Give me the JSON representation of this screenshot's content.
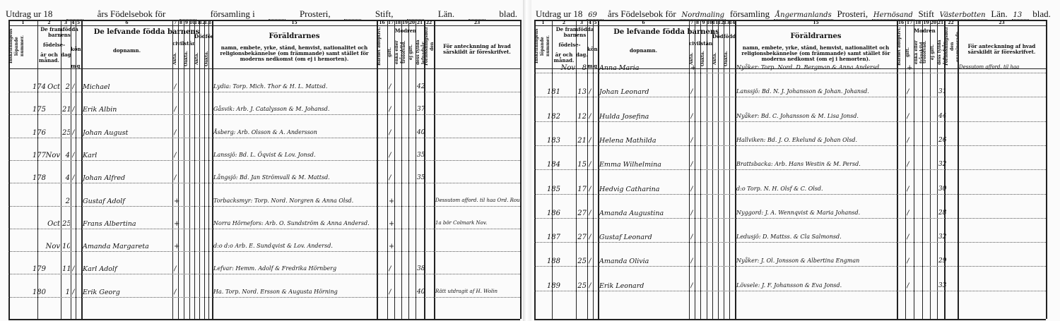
{
  "left_page": {
    "title": {
      "prefix": "Utdrag ur 18",
      "year": "",
      "suffix1": "års Födelsebok för",
      "parish_label": "församling i",
      "parish": "",
      "deanery_label": "Prosteri,",
      "deanery": "",
      "diocese_label": "Stift,",
      "diocese": "",
      "county_label": "Län.",
      "county": "",
      "sheet_label": "blad."
    },
    "rows": [
      {
        "num": "174",
        "month": "Oct",
        "day": "2",
        "sex": "/",
        "name": "Michael",
        "civil": "/",
        "parents": "Lydia: Torp. Mich. Thor & H. L. Mattsd.",
        "mother_mark": "/",
        "age": "42",
        "note": ""
      },
      {
        "num": "175",
        "month": "",
        "day": "21",
        "sex": "/",
        "name": "Erik Albin",
        "civil": "/",
        "parents": "Gåsvik: Arb. J. Catalysson & M. Johansd.",
        "mother_mark": "/",
        "age": "37",
        "note": ""
      },
      {
        "num": "176",
        "month": "",
        "day": "25",
        "sex": "/",
        "name": "Johan August",
        "civil": "/",
        "parents": "Åsberg: Arb. Olsson & A. Andersson",
        "mother_mark": "/",
        "age": "40",
        "note": ""
      },
      {
        "num": "177",
        "month": "Nov",
        "day": "4",
        "sex": "/",
        "name": "Karl",
        "civil": "/",
        "parents": "Lanssjö: Bd. L. Öqvist & Lov. Jonsd.",
        "mother_mark": "/",
        "age": "35",
        "note": ""
      },
      {
        "num": "178",
        "month": "",
        "day": "4",
        "sex": "/",
        "name": "Johan Alfred",
        "civil": "/",
        "parents": "Långsjö: Bd. Jan Strömvall & M. Mattsd.",
        "mother_mark": "/",
        "age": "35",
        "note": ""
      },
      {
        "num": "",
        "month": "",
        "day": "2",
        "sex": "",
        "name": "Gustaf Adolf",
        "civil": "+",
        "parents": "Torbacksmyr: Torp. Nord. Norgren & Anna Olsd.",
        "mother_mark": "+",
        "age": "",
        "note": "Dessutom afford. til haa Ord. Roun"
      },
      {
        "num": "",
        "month": "Oct",
        "day": "25",
        "sex": "",
        "name": "Frans Albertina",
        "civil": "+",
        "parents": "Norra Hörnefors: Arb. O. Sundström & Anna Andersd.",
        "mother_mark": "+",
        "age": "",
        "note": "1a bör Colmark Nov."
      },
      {
        "num": "",
        "month": "Nov",
        "day": "10",
        "sex": "",
        "name": "Amanda Margareta",
        "civil": "+",
        "parents": "d:o d:o Arb. E. Sundqvist & Lov. Andersd.",
        "mother_mark": "+",
        "age": "",
        "note": ""
      },
      {
        "num": "179",
        "month": "",
        "day": "11",
        "sex": "/",
        "name": "Karl Adolf",
        "civil": "/",
        "parents": "Lefvar: Hemm. Adolf & Fredrika Hörnberg",
        "mother_mark": "/",
        "age": "38",
        "note": ""
      },
      {
        "num": "180",
        "month": "",
        "day": "1",
        "sex": "/",
        "name": "Erik Georg",
        "civil": "/",
        "parents": "Ha. Torp. Nord. Ersson & Augusta Hörning",
        "mother_mark": "/",
        "age": "40",
        "note": "Rätt utdragit af H. Wolin"
      }
    ]
  },
  "right_page": {
    "title": {
      "prefix": "Utdrag ur 18",
      "year": "69",
      "suffix1": "års Födelsebok för",
      "parish_label": "församling",
      "parish": "Nordmaling",
      "deanery_label": "Prosteri,",
      "deanery": "Ångermanlands",
      "diocese_label": "Stift",
      "diocese": "Hernösand",
      "county_label": "Län.",
      "county": "Västerbotten",
      "sheet_label": "blad.",
      "sheet": "13"
    },
    "rows": [
      {
        "num": "",
        "month": "Nov",
        "day": "8",
        "sex": "",
        "name": "Anna Maria",
        "civil": "+",
        "parents": "Nyåker: Torp. Nord. D. Bergman & Anna Andersd.",
        "mother_mark": "+",
        "age": "",
        "note": "Dessutom afford. til haa"
      },
      {
        "num": "181",
        "month": "",
        "day": "13",
        "sex": "/",
        "name": "Johan Leonard",
        "civil": "/",
        "parents": "Lanssjö: Bd. N. J. Johansson & Johan. Johansd.",
        "mother_mark": "/",
        "age": "31",
        "note": ""
      },
      {
        "num": "182",
        "month": "",
        "day": "12",
        "sex": "/",
        "name": "Hulda Josefina",
        "civil": "/",
        "parents": "Nyåker: Bd. C. Johansson & M. Lisa Jonsd.",
        "mother_mark": "/",
        "age": "44",
        "note": ""
      },
      {
        "num": "183",
        "month": "",
        "day": "21",
        "sex": "/",
        "name": "Helena Mathilda",
        "civil": "/",
        "parents": "Hallviken: Bd. J. O. Ekelund & Johan Olsd.",
        "mother_mark": "/",
        "age": "26",
        "note": ""
      },
      {
        "num": "184",
        "month": "",
        "day": "15",
        "sex": "/",
        "name": "Emma Wilhelmina",
        "civil": "/",
        "parents": "Brattsbacka: Arb. Hans Westin & M. Persd.",
        "mother_mark": "/",
        "age": "32",
        "note": ""
      },
      {
        "num": "185",
        "month": "",
        "day": "17",
        "sex": "/",
        "name": "Hedvig Catharina",
        "civil": "/",
        "parents": "d:o Torp. N. H. Olsf & C. Olsd.",
        "mother_mark": "/",
        "age": "30",
        "note": ""
      },
      {
        "num": "186",
        "month": "",
        "day": "27",
        "sex": "/",
        "name": "Amanda Augustina",
        "civil": "/",
        "parents": "Nyggord: J. A. Wennqvist & Maria Johansd.",
        "mother_mark": "/",
        "age": "28",
        "note": ""
      },
      {
        "num": "187",
        "month": "",
        "day": "27",
        "sex": "/",
        "name": "Gustaf Leonard",
        "civil": "/",
        "parents": "Ledusjö: D. Mattss. & Cla Salmonsd.",
        "mother_mark": "/",
        "age": "32",
        "note": ""
      },
      {
        "num": "188",
        "month": "",
        "day": "25",
        "sex": "/",
        "name": "Amanda Olivia",
        "civil": "/",
        "parents": "Nyåker: J. Ol. Jonsson & Albertina Engman",
        "mother_mark": "/",
        "age": "29",
        "note": ""
      },
      {
        "num": "189",
        "month": "",
        "day": "25",
        "sex": "/",
        "name": "Erik Leonard",
        "civil": "/",
        "parents": "Lövsele: J. F. Johansson & Eva Jonsd.",
        "mother_mark": "/",
        "age": "33",
        "note": ""
      }
    ]
  },
  "headers": {
    "col_numbers": [
      "1",
      "2",
      "3",
      "4",
      "5",
      "6",
      "7",
      "8",
      "9",
      "10",
      "11",
      "12",
      "13",
      "14",
      "15",
      "16",
      "17",
      "18",
      "19",
      "20",
      "21",
      "22",
      "23"
    ],
    "col1": "Inskrifningens löpande nummer.",
    "col2_group": "De framfödda barnens",
    "col2_sub": "födelse-",
    "col2": "år och månad.",
    "col3": "dag.",
    "col45": "kön.",
    "sex_m": "m",
    "sex_q": "q",
    "col6_group": "De lefvande födda barnens",
    "col6": "dopnamn.",
    "civil": "civilstånd.",
    "dead": "Dödfödda.",
    "akta": "Äkta.",
    "oakta": "Oäkta.",
    "col15_title": "Föräldrarnes",
    "col15_sub": "namn, embete, yrke, stånd, hemvist, nationalitet och religionsbekännelse (om främmande) samt stället för moderns nedkomst (om ej i hemorten).",
    "col16": "Barnet adoptivt.",
    "mother": "Modren",
    "col17": "gift.",
    "col18": "enka eller frånskild.",
    "col19": "trolofvad.",
    "col20": "ej gift.",
    "col21": "dess fyllda lefnadsår.",
    "col22": "Förlossningsbiträdet den examinerade.",
    "col23": "För antecknning af hvad särskildt är föreskrifvet."
  }
}
